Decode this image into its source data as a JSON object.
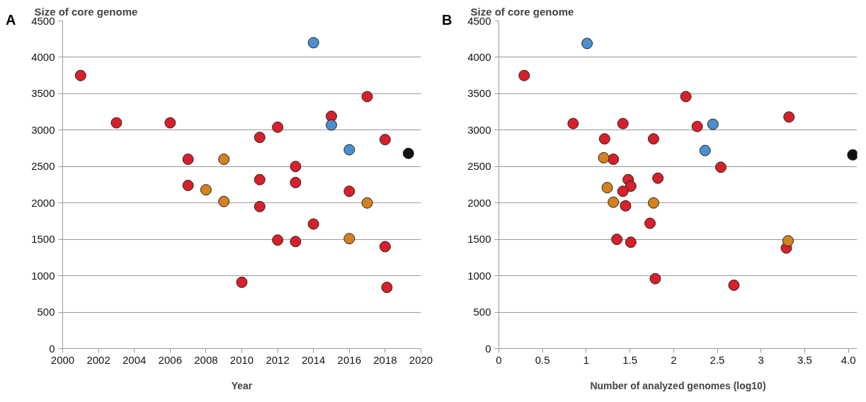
{
  "chart_data": [
    {
      "type": "scatter",
      "title": "A",
      "ylabel": "Size of core genome",
      "xlabel": "Year",
      "xlim": [
        2000,
        2020
      ],
      "xticks": [
        2000,
        2002,
        2004,
        2006,
        2008,
        2010,
        2012,
        2014,
        2016,
        2018,
        2020
      ],
      "ylim": [
        0,
        4500
      ],
      "yticks": [
        0,
        500,
        1000,
        1500,
        2000,
        2500,
        3000,
        3500,
        4000,
        4500
      ],
      "grid": "y",
      "marker": "circle",
      "series": [
        {
          "color": "#d7202a",
          "x": [
            2001,
            2003,
            2006,
            2007,
            2007,
            2010,
            2011,
            2011,
            2011,
            2012,
            2012,
            2013,
            2013,
            2013,
            2014,
            2015,
            2016,
            2017,
            2018,
            2018,
            2018.1
          ],
          "values": [
            3750,
            3100,
            3100,
            2600,
            2240,
            910,
            2900,
            2320,
            1950,
            3040,
            1490,
            2500,
            2280,
            1470,
            1710,
            3190,
            2160,
            3460,
            2870,
            1400,
            840
          ]
        },
        {
          "color": "#d4821f",
          "x": [
            2008,
            2009,
            2009,
            2016,
            2017
          ],
          "values": [
            2180,
            2600,
            2020,
            1510,
            2000
          ]
        },
        {
          "color": "#4a8fce",
          "x": [
            2014,
            2015,
            2016
          ],
          "values": [
            4200,
            3070,
            2730
          ]
        },
        {
          "color": "#111111",
          "x": [
            2019.3
          ],
          "values": [
            2680
          ]
        }
      ]
    },
    {
      "type": "scatter",
      "title": "B",
      "ylabel": "Size of core genome",
      "xlabel": "Number of analyzed genomes (log10)",
      "xlim": [
        0,
        4.1
      ],
      "xticks": [
        0,
        0.5,
        1,
        1.5,
        2,
        2.5,
        3,
        3.5,
        {
          "value": 4,
          "label": "4.0"
        }
      ],
      "ylim": [
        0,
        4500
      ],
      "yticks": [
        0,
        500,
        1000,
        1500,
        2000,
        2500,
        3000,
        3500,
        4000,
        4500
      ],
      "grid": "y",
      "marker": "circle",
      "series": [
        {
          "color": "#d7202a",
          "x": [
            0.29,
            0.85,
            1.42,
            1.21,
            1.77,
            1.31,
            1.48,
            1.51,
            1.42,
            1.45,
            1.82,
            1.73,
            1.35,
            1.51,
            1.79,
            2.14,
            2.27,
            2.54,
            2.69,
            3.32,
            3.29
          ],
          "values": [
            3750,
            3090,
            3090,
            2880,
            2880,
            2600,
            2320,
            2230,
            2160,
            1960,
            2340,
            1720,
            1500,
            1460,
            960,
            3460,
            3050,
            2490,
            870,
            3180,
            1380
          ]
        },
        {
          "color": "#d4821f",
          "x": [
            1.2,
            1.24,
            1.31,
            1.77,
            3.31
          ],
          "values": [
            2620,
            2210,
            2010,
            2000,
            1480
          ]
        },
        {
          "color": "#4a8fce",
          "x": [
            1.01,
            2.45,
            2.36
          ],
          "values": [
            4190,
            3080,
            2720
          ]
        },
        {
          "color": "#111111",
          "x": [
            4.05
          ],
          "values": [
            2660
          ]
        }
      ]
    }
  ]
}
